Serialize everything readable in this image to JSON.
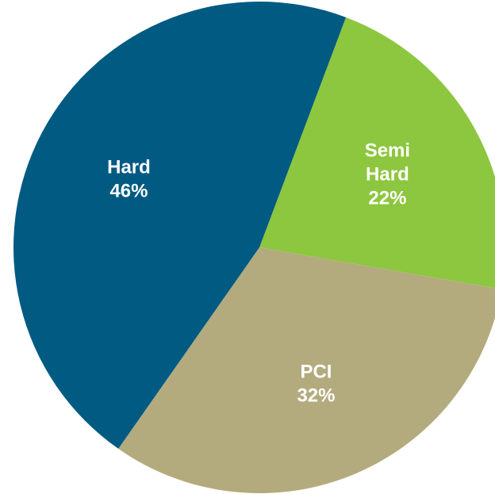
{
  "chart_data": {
    "type": "pie",
    "categories": [
      "Semi Hard",
      "PCI",
      "Hard"
    ],
    "values": [
      22,
      32,
      46
    ],
    "value_labels": [
      "22%",
      "32%",
      "46%"
    ],
    "colors": [
      "#8dc63f",
      "#b3ab7d",
      "#005a82"
    ]
  }
}
